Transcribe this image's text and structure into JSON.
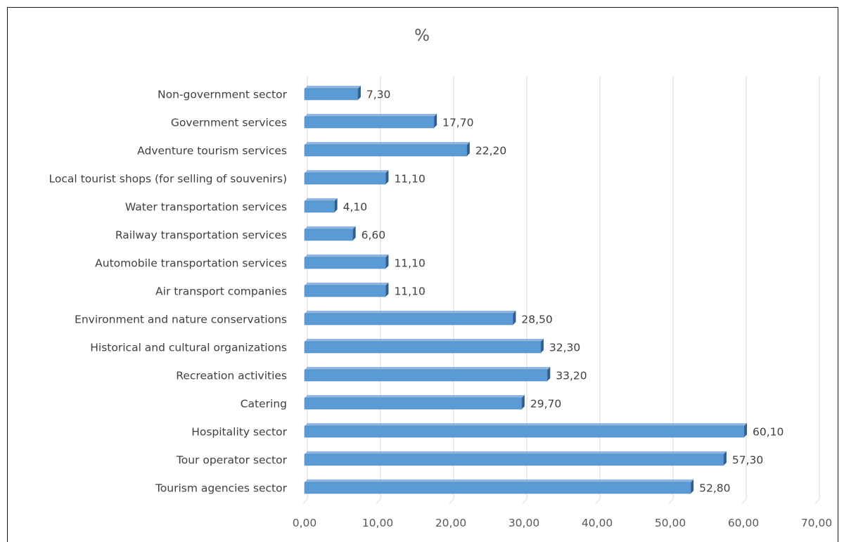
{
  "chart_data": {
    "type": "bar",
    "orientation": "horizontal",
    "title": "%",
    "xlabel": "",
    "ylabel": "",
    "categories": [
      "Tourism agencies sector",
      "Tour operator sector",
      "Hospitality sector",
      "Catering",
      "Recreation activities",
      "Historical and cultural organizations",
      "Environment and nature conservations",
      "Air transport companies",
      "Automobile transportation services",
      "Railway transportation services",
      "Water transportation services",
      "Local tourist shops (for selling of souvenirs)",
      "Adventure tourism services",
      "Government services",
      "Non-government sector"
    ],
    "values": [
      52.8,
      57.3,
      60.1,
      29.7,
      33.2,
      32.3,
      28.5,
      11.1,
      11.1,
      6.6,
      4.1,
      11.1,
      22.2,
      17.7,
      7.3
    ],
    "data_labels": [
      "52,80",
      "57,30",
      "60,10",
      "29,70",
      "33,20",
      "32,30",
      "28,50",
      "11,10",
      "11,10",
      "6,60",
      "4,10",
      "11,10",
      "22,20",
      "17,70",
      "7,30"
    ],
    "xlim": [
      0,
      70
    ],
    "x_ticks": [
      0,
      10,
      20,
      30,
      40,
      50,
      60,
      70
    ],
    "x_tick_labels": [
      "0,00",
      "10,00",
      "20,00",
      "30,00",
      "40,00",
      "50,00",
      "60,00",
      "70,00"
    ],
    "grid": true,
    "legend": "none",
    "colors": {
      "bar_front": "#5b9bd5",
      "bar_top": "#8db6e3",
      "bar_side": "#2e5f8f",
      "grid": "#d9d9d9"
    }
  }
}
